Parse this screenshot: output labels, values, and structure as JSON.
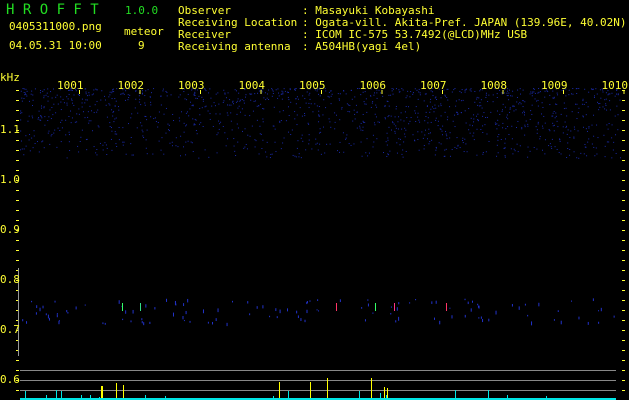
{
  "app": {
    "title": "H R O F F T",
    "version": "1.0.0",
    "title_color": "#22dd22"
  },
  "file": {
    "name": "0405311000.png",
    "datetime": "04.05.31 10:00"
  },
  "meteor": {
    "label": "meteor",
    "count": "9"
  },
  "info": {
    "observer_label": "Observer",
    "observer": ": Masayuki Kobayashi",
    "location_label": "Receiving Location",
    "location": ": Ogata-vill. Akita-Pref. JAPAN (139.96E, 40.02N)",
    "receiver_label": "Receiver",
    "receiver": ": ICOM IC-575 53.7492(@LCD)MHz USB",
    "antenna_label": "Receiving antenna",
    "antenna": ": A504HB(yagi 4el)"
  },
  "axis": {
    "unit": "kHz",
    "x_labels": [
      "1001",
      "1002",
      "1003",
      "1004",
      "1005",
      "1006",
      "1007",
      "1008",
      "1009",
      "1010"
    ],
    "y_labels": [
      "1.1",
      "1.0",
      "0.9",
      "0.8",
      "0.7",
      "0.6"
    ]
  },
  "colors": {
    "text": "#ffff33",
    "noise": "#1a2aa8",
    "count_bar": "#00e5e5",
    "meteor_bar": "#ffff00",
    "grid": "#888888"
  }
}
